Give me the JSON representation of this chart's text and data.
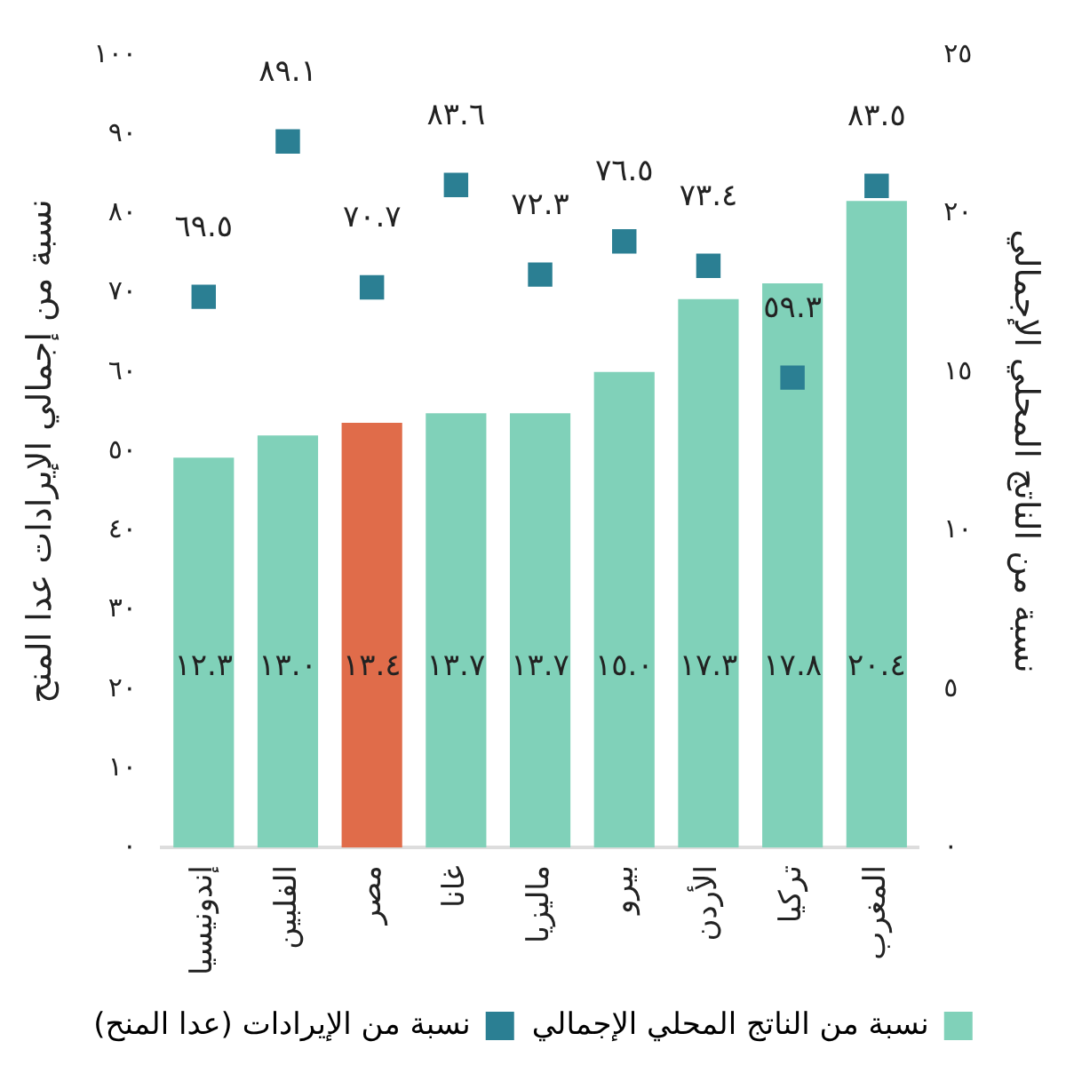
{
  "chart_data": {
    "type": "bar",
    "ylabel": "نسبة من إجمالي الإيرادات عدا المنح",
    "y2label": "نسبة من الناتج المحلي الإجمالي",
    "categories": [
      "إندونيسيا",
      "الفلبين",
      "مصر",
      "غانا",
      "ماليزيا",
      "بيرو",
      "الأردن",
      "تركيا",
      "المغرب"
    ],
    "series": [
      {
        "name": "نسبة من الناتج المحلي الإجمالي",
        "type": "bar",
        "axis": "y2",
        "color": "#80d1b9",
        "colors": [
          "#80d1b9",
          "#80d1b9",
          "#e06c4a",
          "#80d1b9",
          "#80d1b9",
          "#80d1b9",
          "#80d1b9",
          "#80d1b9",
          "#80d1b9"
        ],
        "values": [
          12.3,
          13.0,
          13.4,
          13.7,
          13.7,
          15.0,
          17.3,
          17.8,
          20.4
        ],
        "value_labels": [
          "١٢.٣",
          "١٣.٠",
          "١٣.٤",
          "١٣.٧",
          "١٣.٧",
          "١٥.٠",
          "١٧.٣",
          "١٧.٨",
          "٢٠.٤"
        ]
      },
      {
        "name": "نسبة من الإيرادات (عدا المنح)",
        "type": "scatter",
        "axis": "y",
        "marker": "square",
        "color": "#2b7f93",
        "x": [
          "إندونيسيا",
          "الفلبين",
          "مصر",
          "غانا",
          "ماليزيا",
          "بيرو",
          "الأردن",
          "تركيا",
          "المغرب"
        ],
        "values": [
          69.5,
          89.1,
          70.7,
          83.6,
          72.3,
          76.5,
          73.4,
          59.3,
          83.5
        ],
        "value_labels": [
          "٦٩.٥",
          "٨٩.١",
          "٧٠.٧",
          "٨٣.٦",
          "٧٢.٣",
          "٧٦.٥",
          "٧٣.٤",
          "٥٩.٣",
          "٨٣.٥"
        ]
      }
    ],
    "ylim": [
      0,
      100
    ],
    "yticks": [
      {
        "value": 0,
        "label": "٠"
      },
      {
        "value": 10,
        "label": "١٠"
      },
      {
        "value": 20,
        "label": "٢٠"
      },
      {
        "value": 30,
        "label": "٣٠"
      },
      {
        "value": 40,
        "label": "٤٠"
      },
      {
        "value": 50,
        "label": "٥٠"
      },
      {
        "value": 60,
        "label": "٦٠"
      },
      {
        "value": 70,
        "label": "٧٠"
      },
      {
        "value": 80,
        "label": "٨٠"
      },
      {
        "value": 90,
        "label": "٩٠"
      },
      {
        "value": 100,
        "label": "١٠٠"
      }
    ],
    "y2lim": [
      0,
      25
    ],
    "y2ticks": [
      {
        "value": 0,
        "label": "٠"
      },
      {
        "value": 5,
        "label": "٥"
      },
      {
        "value": 10,
        "label": "١٠"
      },
      {
        "value": 15,
        "label": "١٥"
      },
      {
        "value": 20,
        "label": "٢٠"
      },
      {
        "value": 25,
        "label": "٢٥"
      }
    ],
    "grid": false,
    "legend": "bottom"
  }
}
